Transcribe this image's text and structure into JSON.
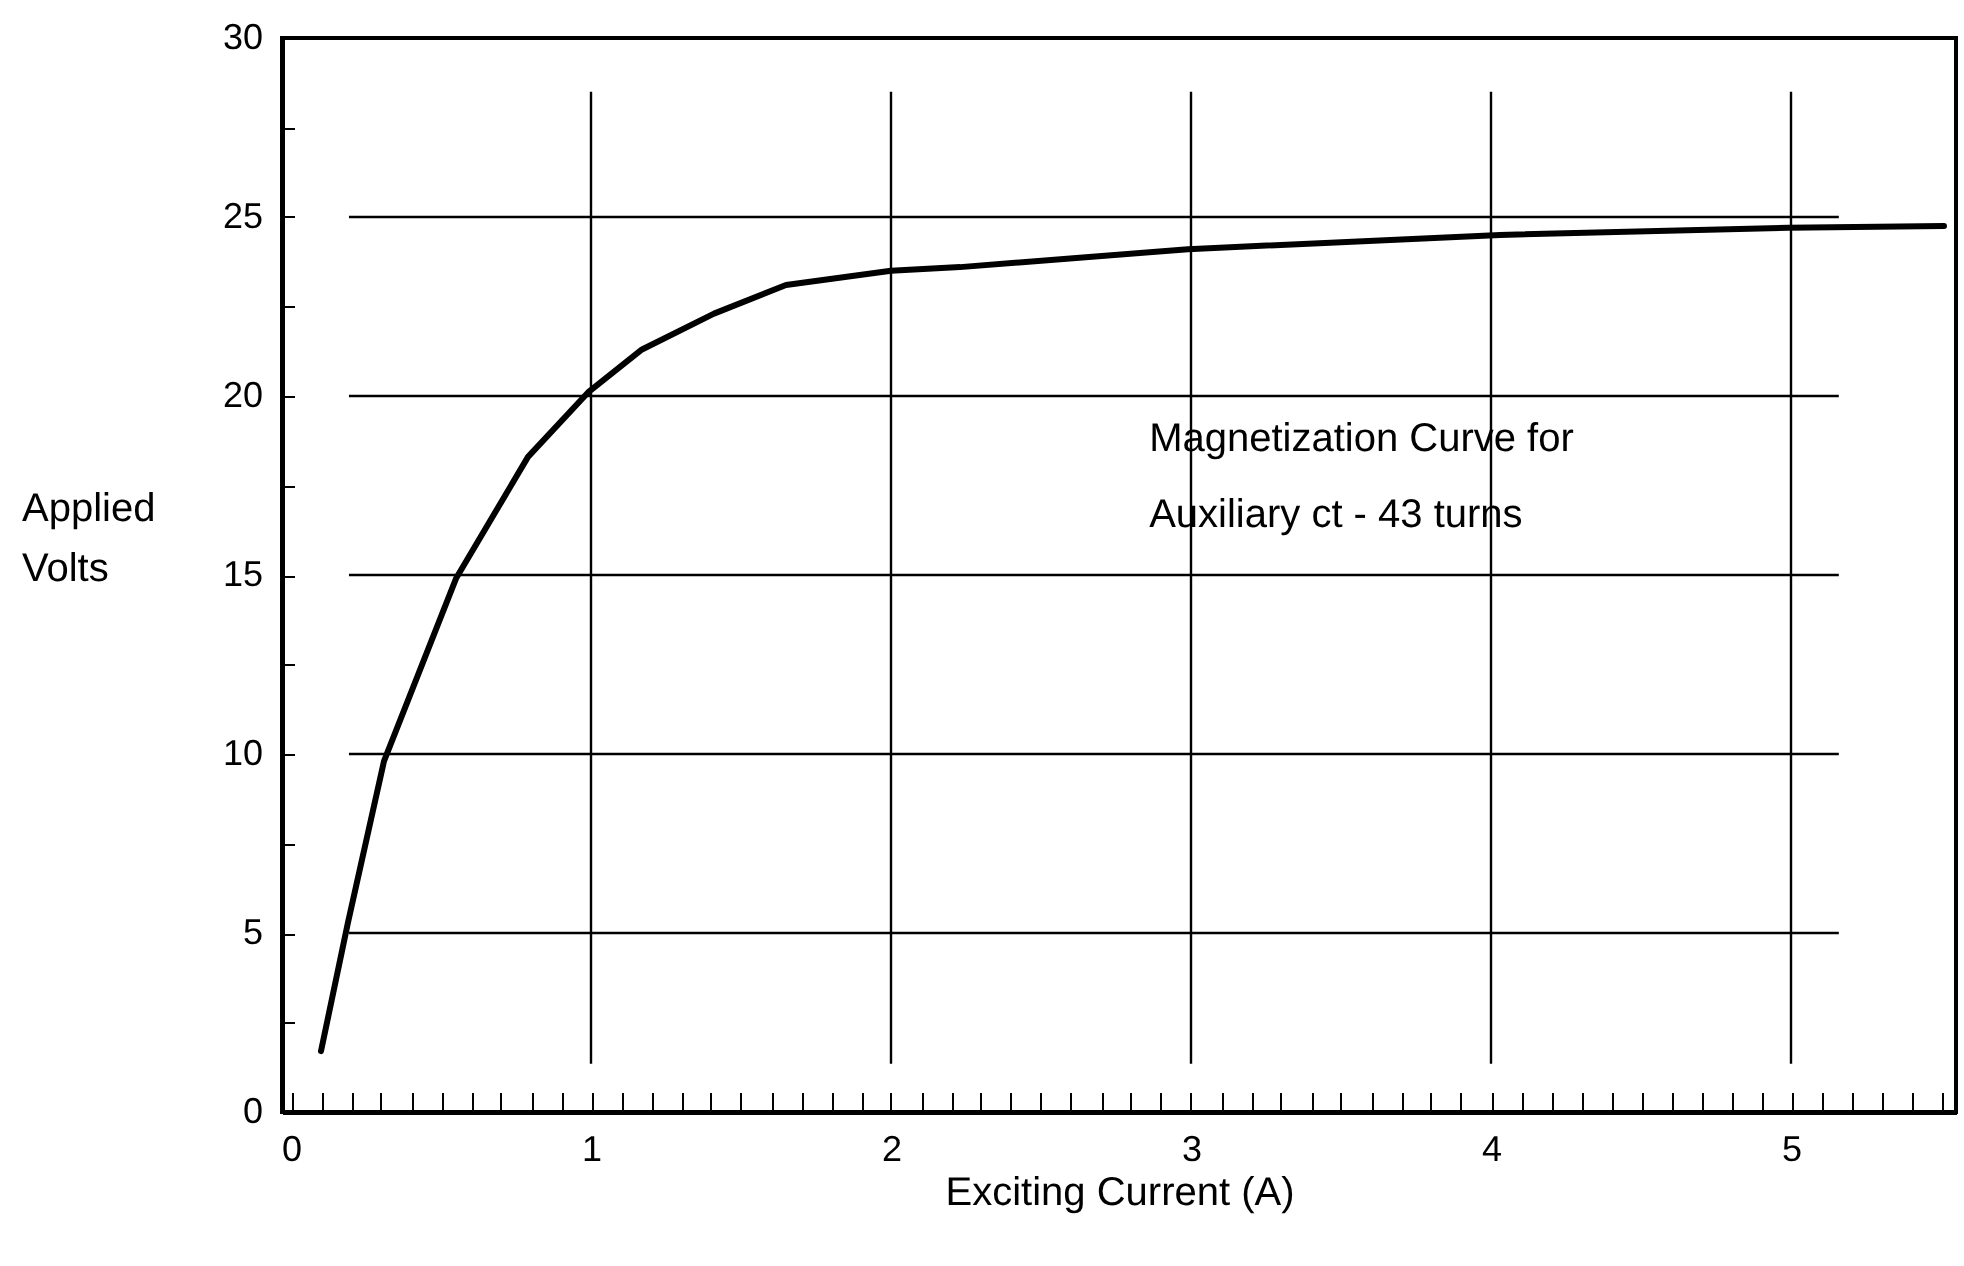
{
  "chart_data": {
    "type": "line",
    "xlabel": "Exciting Current (A)",
    "ylabel": "Applied Volts",
    "annotations": [
      "Magnetization Curve for\nAuxiliary ct - 43 turns"
    ],
    "x": [
      0.1,
      0.19,
      0.31,
      0.55,
      0.79,
      0.99,
      1.17,
      1.41,
      1.65,
      2.0,
      2.23,
      2.99,
      4.03,
      4.99,
      5.51
    ],
    "series": [
      {
        "color": "#000000",
        "values": [
          1.7,
          5.3,
          9.8,
          14.9,
          18.3,
          20.1,
          21.3,
          22.3,
          23.1,
          23.5,
          23.6,
          24.1,
          24.5,
          24.7,
          24.75
        ]
      }
    ],
    "xlim": [
      -0.03,
      5.55
    ],
    "ylim": [
      0,
      30
    ],
    "xticks": [
      0,
      {
        "value": 0.1,
        "label": null
      },
      {
        "value": 0.2,
        "label": null
      },
      {
        "value": 0.3,
        "label": null
      },
      {
        "value": 0.4,
        "label": null
      },
      {
        "value": 0.5,
        "label": null
      },
      {
        "value": 0.6,
        "label": null
      },
      {
        "value": 0.7,
        "label": null
      },
      {
        "value": 0.8,
        "label": null
      },
      {
        "value": 0.9,
        "label": null
      },
      1,
      {
        "value": 1.1,
        "label": null
      },
      {
        "value": 1.2,
        "label": null
      },
      {
        "value": 1.3,
        "label": null
      },
      {
        "value": 1.4,
        "label": null
      },
      {
        "value": 1.5,
        "label": null
      },
      {
        "value": 1.6,
        "label": null
      },
      {
        "value": 1.7,
        "label": null
      },
      {
        "value": 1.8,
        "label": null
      },
      {
        "value": 1.9,
        "label": null
      },
      2,
      {
        "value": 2.1,
        "label": null
      },
      {
        "value": 2.2,
        "label": null
      },
      {
        "value": 2.3,
        "label": null
      },
      {
        "value": 2.4,
        "label": null
      },
      {
        "value": 2.5,
        "label": null
      },
      {
        "value": 2.6,
        "label": null
      },
      {
        "value": 2.7,
        "label": null
      },
      {
        "value": 2.8,
        "label": null
      },
      {
        "value": 2.9,
        "label": null
      },
      3,
      {
        "value": 3.1,
        "label": null
      },
      {
        "value": 3.2,
        "label": null
      },
      {
        "value": 3.3,
        "label": null
      },
      {
        "value": 3.4,
        "label": null
      },
      {
        "value": 3.5,
        "label": null
      },
      {
        "value": 3.6,
        "label": null
      },
      {
        "value": 3.7,
        "label": null
      },
      {
        "value": 3.8,
        "label": null
      },
      {
        "value": 3.9,
        "label": null
      },
      4,
      {
        "value": 4.1,
        "label": null
      },
      {
        "value": 4.2,
        "label": null
      },
      {
        "value": 4.3,
        "label": null
      },
      {
        "value": 4.4,
        "label": null
      },
      {
        "value": 4.5,
        "label": null
      },
      {
        "value": 4.6,
        "label": null
      },
      {
        "value": 4.7,
        "label": null
      },
      {
        "value": 4.8,
        "label": null
      },
      {
        "value": 4.9,
        "label": null
      },
      5,
      {
        "value": 5.1,
        "label": null
      },
      {
        "value": 5.2,
        "label": null
      },
      {
        "value": 5.3,
        "label": null
      },
      {
        "value": 5.4,
        "label": null
      },
      {
        "value": 5.5,
        "label": null
      }
    ],
    "yticks": [
      0,
      {
        "value": 2.5,
        "label": null
      },
      5,
      {
        "value": 7.5,
        "label": null
      },
      10,
      {
        "value": 12.5,
        "label": null
      },
      15,
      {
        "value": 17.5,
        "label": null
      },
      20,
      {
        "value": 22.5,
        "label": null
      },
      25,
      {
        "value": 27.5,
        "label": null
      },
      30
    ],
    "grid": true,
    "line_style": "solid"
  }
}
